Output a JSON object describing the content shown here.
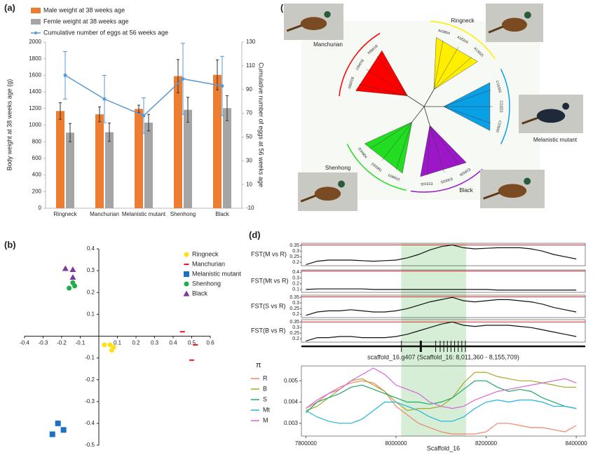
{
  "chart_data": [
    {
      "type": "bar",
      "panel": "(a)",
      "categories": [
        "Ringneck",
        "Manchurian",
        "Melanistic mutant",
        "Shenhong",
        "Black"
      ],
      "series": [
        {
          "name": "Male weight at 38 weeks age",
          "color": "#ed7d31",
          "values": [
            1170,
            1130,
            1195,
            1590,
            1605
          ],
          "errors": [
            100,
            90,
            45,
            200,
            180
          ]
        },
        {
          "name": "Femle weight at 38 weeks age",
          "color": "#a5a5a5",
          "values": [
            910,
            915,
            1030,
            1185,
            1205
          ],
          "errors": [
            110,
            110,
            100,
            150,
            150
          ]
        },
        {
          "name": "Cumulative number of eggs at 56 weeks age",
          "color": "#5b9bd5",
          "axis": "y2",
          "values": [
            102,
            82,
            68,
            99,
            93
          ],
          "errors": [
            20,
            20,
            15,
            30,
            25
          ]
        }
      ],
      "ylim": [
        0,
        2000
      ],
      "yticks": [
        0,
        200,
        400,
        600,
        800,
        1000,
        1200,
        1400,
        1600,
        1800,
        2000
      ],
      "y2lim": [
        -10,
        130
      ],
      "y2ticks": [
        -10,
        10,
        30,
        50,
        70,
        90,
        110,
        130
      ],
      "ylabel": "Body weight at 38 weeks age (g)",
      "y2label": "Cumulative number of eggs at 56 weeks age"
    },
    {
      "type": "scatter",
      "panel": "(b)",
      "xlim": [
        -0.4,
        0.6
      ],
      "ylim": [
        -0.5,
        0.4
      ],
      "xticks": [
        -0.4,
        -0.3,
        -0.2,
        -0.1,
        0.1,
        0.2,
        0.3,
        0.4,
        0.5,
        0.6
      ],
      "yticks": [
        0.4,
        0.3,
        0.2,
        0.1,
        -0.1,
        -0.2,
        -0.3,
        -0.4,
        -0.5
      ],
      "series": [
        {
          "name": "Ringneck",
          "color": "#ffe11a",
          "marker": "circle",
          "x": [
            0.03,
            0.06,
            0.08,
            0.07
          ],
          "values": [
            -0.04,
            -0.04,
            -0.05,
            -0.065
          ]
        },
        {
          "name": "Manchurian",
          "color": "#e8141e",
          "marker": "dash",
          "x": [
            0.45,
            0.52,
            0.5
          ],
          "values": [
            0.02,
            -0.04,
            -0.11
          ]
        },
        {
          "name": "Melanistic mutant",
          "color": "#1f6fc4",
          "marker": "square",
          "x": [
            -0.22,
            -0.19,
            -0.25
          ],
          "values": [
            -0.4,
            -0.43,
            -0.45
          ]
        },
        {
          "name": "Shenhong",
          "color": "#1fae4a",
          "marker": "circle",
          "x": [
            -0.16,
            -0.13,
            -0.14
          ],
          "values": [
            0.22,
            0.23,
            0.245
          ]
        },
        {
          "name": "Black",
          "color": "#7a3b9c",
          "marker": "triangle",
          "x": [
            -0.18,
            -0.14,
            -0.14
          ],
          "values": [
            0.31,
            0.305,
            0.27
          ]
        }
      ]
    },
    {
      "type": "tree",
      "panel": "(c)",
      "clades": [
        {
          "name": "Manchurian",
          "color": "#ff0000",
          "leaves": [
            "B19350",
            "B19407",
            "B19504"
          ]
        },
        {
          "name": "Ringneck",
          "color": "#ffee00",
          "leaves": [
            "A03804",
            "A18324",
            "A13025"
          ]
        },
        {
          "name": "Melanistic mutant",
          "color": "#0aa0e6",
          "leaves": [
            "C16353",
            "C13211",
            "C23502"
          ]
        },
        {
          "name": "Black",
          "color": "#9b17c8",
          "leaves": [
            "E26505",
            "E30025",
            "E33105"
          ]
        },
        {
          "name": "Shenhong",
          "color": "#22dd22",
          "leaves": [
            "D36610",
            "D33361",
            "D34804"
          ]
        }
      ]
    },
    {
      "type": "line",
      "panel": "(d)",
      "x": [
        7800000,
        7825000,
        7850000,
        7875000,
        7900000,
        7925000,
        7950000,
        7975000,
        8000000,
        8025000,
        8050000,
        8075000,
        8100000,
        8125000,
        8150000,
        8175000,
        8200000,
        8225000,
        8250000,
        8275000,
        8300000,
        8325000,
        8350000,
        8375000,
        8400000
      ],
      "xlim": [
        7790000,
        8420000
      ],
      "xticks": [
        7800000,
        8000000,
        8200000,
        8400000
      ],
      "xlabel": "Scaffold_16",
      "gene_label": "scaffold_16.g407 (Scaffold_16: 8,011,360 - 8,155,709)",
      "gene_start": 8011360,
      "gene_end": 8155709,
      "exons": [
        8012000,
        8055000,
        8088000,
        8098000,
        8106000,
        8114000,
        8122000,
        8130000,
        8138000,
        8146000,
        8154000
      ],
      "fst_panels": [
        {
          "label": "FST(M vs R)",
          "ylim": [
            0.17,
            0.37
          ],
          "yticks": [
            0.2,
            0.25,
            0.3,
            0.35
          ],
          "threshold": 0.355,
          "values": [
            0.18,
            0.21,
            0.22,
            0.22,
            0.22,
            0.215,
            0.21,
            0.215,
            0.22,
            0.24,
            0.27,
            0.31,
            0.34,
            0.355,
            0.33,
            0.32,
            0.325,
            0.33,
            0.33,
            0.33,
            0.32,
            0.3,
            0.27,
            0.25,
            0.23
          ]
        },
        {
          "label": "FST(Mt vs R)",
          "ylim": [
            0.05,
            0.44
          ],
          "yticks": [
            0.1,
            0.2,
            0.3,
            0.4
          ],
          "threshold": 0.42,
          "values": [
            0.1,
            0.11,
            0.11,
            0.11,
            0.11,
            0.11,
            0.1,
            0.1,
            0.1,
            0.1,
            0.1,
            0.1,
            0.1,
            0.1,
            0.1,
            0.1,
            0.1,
            0.09,
            0.09,
            0.09,
            0.09,
            0.09,
            0.09,
            0.09,
            0.09
          ]
        },
        {
          "label": "FST(S vs R)",
          "ylim": [
            0.17,
            0.37
          ],
          "yticks": [
            0.2,
            0.25,
            0.3,
            0.35
          ],
          "threshold": 0.355,
          "values": [
            0.19,
            0.22,
            0.23,
            0.23,
            0.24,
            0.23,
            0.22,
            0.22,
            0.23,
            0.25,
            0.28,
            0.31,
            0.33,
            0.35,
            0.32,
            0.31,
            0.32,
            0.33,
            0.33,
            0.32,
            0.31,
            0.29,
            0.26,
            0.24,
            0.22
          ]
        },
        {
          "label": "FST(B vs R)",
          "ylim": [
            0.17,
            0.37
          ],
          "yticks": [
            0.2,
            0.25,
            0.3,
            0.35
          ],
          "threshold": 0.35,
          "values": [
            0.18,
            0.21,
            0.21,
            0.22,
            0.22,
            0.21,
            0.21,
            0.21,
            0.22,
            0.24,
            0.27,
            0.3,
            0.33,
            0.35,
            0.32,
            0.31,
            0.32,
            0.32,
            0.32,
            0.31,
            0.3,
            0.28,
            0.26,
            0.24,
            0.22
          ]
        }
      ],
      "ylabel": "π",
      "ylim": [
        0.0024,
        0.0057
      ],
      "yticks": [
        0.003,
        0.004,
        0.005
      ],
      "series": [
        {
          "name": "R",
          "color": "#f0846a",
          "values": [
            0.0037,
            0.004,
            0.0044,
            0.0047,
            0.0049,
            0.005,
            0.0049,
            0.0045,
            0.0038,
            0.0034,
            0.003,
            0.0028,
            0.0026,
            0.0025,
            0.0025,
            0.0025,
            0.0026,
            0.003,
            0.003,
            0.0029,
            0.0028,
            0.0028,
            0.0027,
            0.0026,
            0.0029
          ]
        },
        {
          "name": "B",
          "color": "#a8a828",
          "values": [
            0.0036,
            0.0038,
            0.0042,
            0.0046,
            0.005,
            0.0051,
            0.0048,
            0.0045,
            0.004,
            0.0036,
            0.0037,
            0.0037,
            0.0038,
            0.0042,
            0.0049,
            0.0054,
            0.0054,
            0.0052,
            0.0051,
            0.005,
            0.005,
            0.0049,
            0.0048,
            0.0047,
            0.0047
          ]
        },
        {
          "name": "S",
          "color": "#1fa868",
          "values": [
            0.0035,
            0.004,
            0.0042,
            0.0044,
            0.0047,
            0.0048,
            0.0046,
            0.0044,
            0.0042,
            0.004,
            0.004,
            0.0039,
            0.004,
            0.0042,
            0.0046,
            0.005,
            0.005,
            0.0047,
            0.0045,
            0.0046,
            0.0045,
            0.0042,
            0.004,
            0.0038,
            0.0037
          ]
        },
        {
          "name": "Mt",
          "color": "#22b4d8",
          "values": [
            0.0036,
            0.0033,
            0.0031,
            0.003,
            0.003,
            0.0032,
            0.0036,
            0.004,
            0.004,
            0.0038,
            0.0036,
            0.0033,
            0.0031,
            0.0031,
            0.0033,
            0.0037,
            0.004,
            0.0041,
            0.004,
            0.0041,
            0.0041,
            0.004,
            0.0038,
            0.0038,
            0.0037
          ]
        },
        {
          "name": "M",
          "color": "#d566d8",
          "values": [
            0.0037,
            0.0041,
            0.0044,
            0.0046,
            0.005,
            0.0053,
            0.0056,
            0.0053,
            0.0048,
            0.0046,
            0.0044,
            0.004,
            0.0038,
            0.0037,
            0.0038,
            0.0041,
            0.0043,
            0.0045,
            0.0046,
            0.0047,
            0.0048,
            0.0049,
            0.005,
            0.0051,
            0.0049
          ]
        }
      ]
    }
  ]
}
